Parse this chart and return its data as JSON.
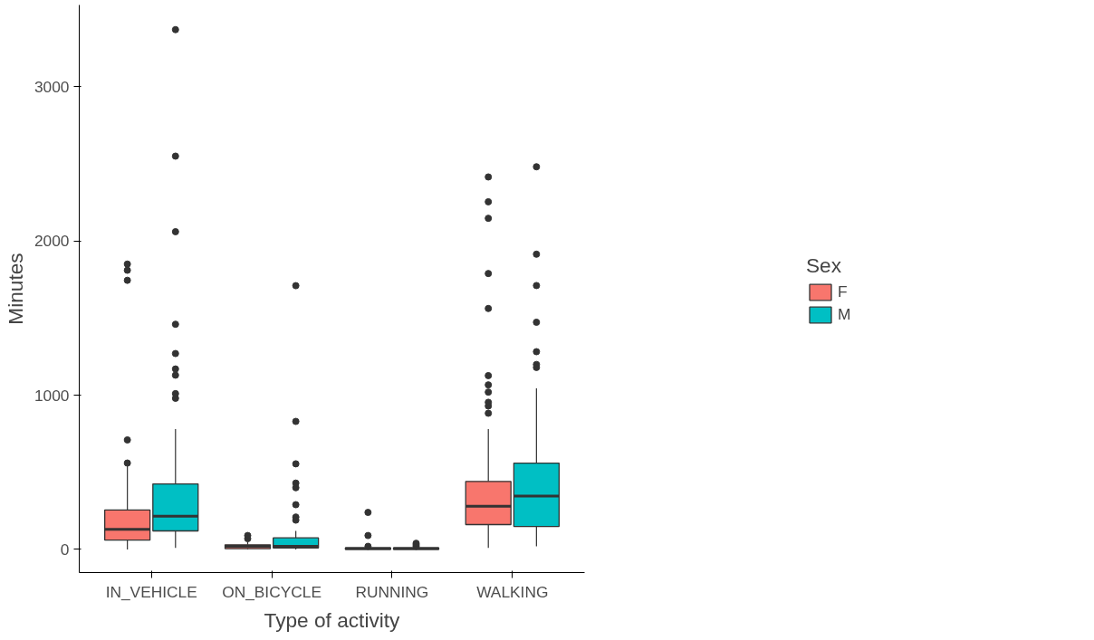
{
  "chart_data": {
    "type": "box",
    "xlabel": "Type of activity",
    "ylabel": "Minutes",
    "legend_title": "Sex",
    "categories": [
      "IN_VEHICLE",
      "ON_BICYCLE",
      "RUNNING",
      "WALKING"
    ],
    "ylim": [
      -150,
      3530
    ],
    "yticks": [
      0,
      1000,
      2000,
      3000
    ],
    "grid": false,
    "legend": "right",
    "series": [
      {
        "name": "F",
        "color": "#f8766d",
        "boxes": [
          {
            "low": 0,
            "q1": 60,
            "median": 130,
            "q3": 256,
            "high": 540,
            "outliers": [
              560,
              710,
              1745,
              1810,
              1850
            ]
          },
          {
            "low": 0,
            "q1": 5,
            "median": 20,
            "q3": 30,
            "high": 50,
            "outliers": [
              70,
              90
            ]
          },
          {
            "low": 0,
            "q1": 0,
            "median": 5,
            "q3": 10,
            "high": 15,
            "outliers": [
              20,
              90,
              240
            ]
          },
          {
            "low": 10,
            "q1": 161,
            "median": 280,
            "q3": 441,
            "high": 781,
            "outliers": [
              883,
              930,
              954,
              1020,
              1067,
              1127,
              1562,
              1789,
              2147,
              2254,
              2415
            ]
          }
        ]
      },
      {
        "name": "M",
        "color": "#00bfc4",
        "boxes": [
          {
            "low": 10,
            "q1": 120,
            "median": 215,
            "q3": 425,
            "high": 780,
            "outliers": [
              980,
              1010,
              1130,
              1170,
              1270,
              1460,
              2060,
              2550,
              3370
            ]
          },
          {
            "low": 0,
            "q1": 10,
            "median": 20,
            "q3": 75,
            "high": 120,
            "outliers": [
              190,
              210,
              290,
              400,
              430,
              555,
              830,
              1710
            ]
          },
          {
            "low": 0,
            "q1": 0,
            "median": 5,
            "q3": 10,
            "high": 15,
            "outliers": [
              20,
              30,
              40
            ]
          },
          {
            "low": 20,
            "q1": 149,
            "median": 346,
            "q3": 560,
            "high": 1044,
            "outliers": [
              1180,
              1199,
              1282,
              1473,
              1711,
              1914,
              2481
            ]
          }
        ]
      }
    ]
  }
}
